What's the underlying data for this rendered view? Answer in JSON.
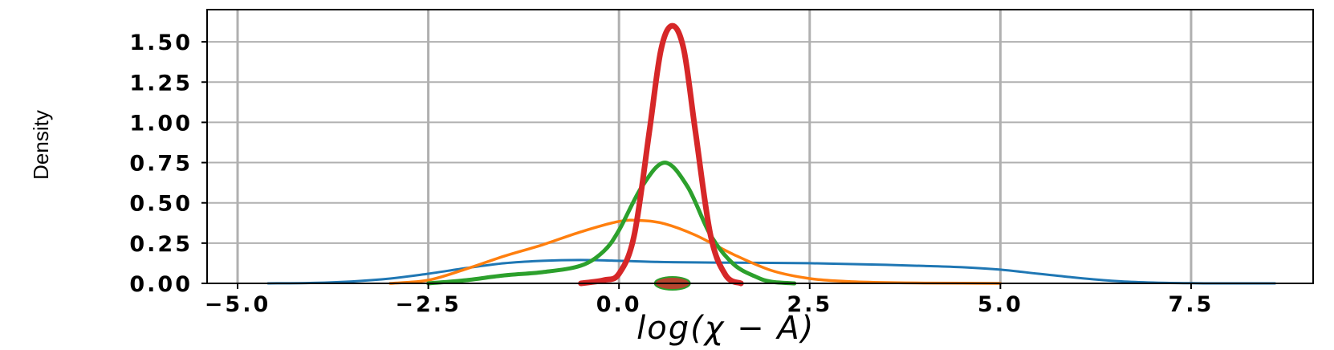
{
  "chart_data": {
    "type": "line",
    "xlabel": "log(χ − A)",
    "ylabel": "Density",
    "xlim": [
      -5.4,
      9.1
    ],
    "ylim": [
      0,
      1.7
    ],
    "grid": true,
    "xticks": [
      -5.0,
      -2.5,
      0.0,
      2.5,
      5.0,
      7.5
    ],
    "xtick_labels": [
      "−5.0",
      "−2.5",
      "0.0",
      "2.5",
      "5.0",
      "7.5"
    ],
    "yticks": [
      0,
      0.25,
      0.5,
      0.75,
      1.0,
      1.25,
      1.5
    ],
    "ytick_labels": [
      "0.00",
      "0.25",
      "0.50",
      "0.75",
      "1.00",
      "1.25",
      "1.50"
    ],
    "colors": {
      "blue": "#1f77b4",
      "orange": "#ff7f0e",
      "green": "#2ca02c",
      "red": "#d62728",
      "grid": "#b0b0b0"
    },
    "series": [
      {
        "color": "#1f77b4",
        "x": [
          -4.6,
          -4.0,
          -3.5,
          -3.0,
          -2.5,
          -2.0,
          -1.5,
          -1.0,
          -0.5,
          0.0,
          0.5,
          1.0,
          1.5,
          2.0,
          2.5,
          3.0,
          3.5,
          4.0,
          4.5,
          5.0,
          5.5,
          6.0,
          6.5,
          7.0,
          7.5,
          8.0,
          8.6
        ],
        "y": [
          0.0,
          0.003,
          0.012,
          0.03,
          0.06,
          0.095,
          0.125,
          0.14,
          0.145,
          0.14,
          0.133,
          0.13,
          0.128,
          0.127,
          0.125,
          0.12,
          0.115,
          0.108,
          0.1,
          0.085,
          0.06,
          0.035,
          0.015,
          0.005,
          0.001,
          0.0,
          0.0
        ]
      },
      {
        "color": "#ff7f0e",
        "x": [
          -3.0,
          -2.5,
          -2.0,
          -1.5,
          -1.0,
          -0.5,
          0.0,
          0.3,
          0.6,
          1.0,
          1.5,
          2.0,
          2.5,
          3.0,
          3.5,
          4.0,
          4.5,
          5.0
        ],
        "y": [
          0.0,
          0.02,
          0.09,
          0.17,
          0.24,
          0.32,
          0.385,
          0.39,
          0.37,
          0.3,
          0.18,
          0.08,
          0.03,
          0.012,
          0.005,
          0.002,
          0.001,
          0.0
        ]
      },
      {
        "color": "#2ca02c",
        "x": [
          -2.5,
          -2.0,
          -1.5,
          -1.0,
          -0.5,
          -0.2,
          0.0,
          0.3,
          0.6,
          0.9,
          1.2,
          1.5,
          1.8,
          2.0,
          2.3
        ],
        "y": [
          0.0,
          0.02,
          0.05,
          0.07,
          0.11,
          0.2,
          0.33,
          0.6,
          0.75,
          0.6,
          0.3,
          0.12,
          0.04,
          0.01,
          0.0
        ]
      },
      {
        "color": "#d62728",
        "x": [
          -0.5,
          -0.2,
          0.0,
          0.2,
          0.4,
          0.55,
          0.7,
          0.85,
          1.0,
          1.2,
          1.4,
          1.6
        ],
        "y": [
          0.0,
          0.02,
          0.06,
          0.3,
          0.95,
          1.45,
          1.6,
          1.45,
          0.95,
          0.3,
          0.05,
          0.0
        ]
      }
    ],
    "rug_marker": {
      "x": 0.7,
      "y": 0.0,
      "color": "#b5452f",
      "edge": "#2ca02c"
    }
  }
}
